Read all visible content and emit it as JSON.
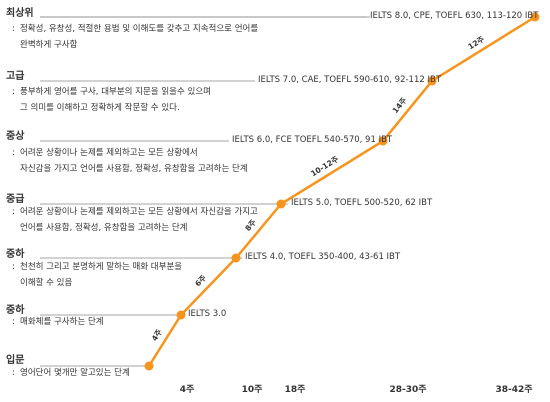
{
  "levels": [
    {
      "name": "최상위",
      "desc": [
        "정확성, 유창성, 적절한 용법 및 이해도를 갖추고 지속적으로 언어를",
        "완벽하게 구사함"
      ],
      "score": "IELTS 8.0, CPE, TOEFL 630, 113-120 IBT"
    },
    {
      "name": "고급",
      "desc": [
        "풍부하게 영어를 구사, 대부분의 지문을 읽을수 있으며",
        "그 의미를 이해하고 정확하게 작문할 수 있다."
      ],
      "score": "IELTS 7.0, CAE, TOEFL 590-610, 92-112 IBT"
    },
    {
      "name": "중상",
      "desc": [
        "어려운 상황이나 논제를 제외하고는 모든 상황에서",
        "자신감을 가지고 언어를 사용함, 정확성, 유창함을 고려하는 단계"
      ],
      "score": "IELTS 6.0, FCE TOEFL 540-570, 91 IBT"
    },
    {
      "name": "중급",
      "desc": [
        "어려운 상황이나 논제를 제외하고는 모든 상황에서 자신감을 가지고",
        "언어를 사용함, 정확성, 유창함을 고려하는 단계"
      ],
      "score": "IELTS 5.0, TOEFL 500-520, 62 IBT"
    },
    {
      "name": "중하",
      "desc": [
        "천천히 그리고 분명하게 말하는 매화 대부분을",
        "이해할 수 있음"
      ],
      "score": "IELTS 4.0, TOEFL 350-400, 43-61 IBT"
    },
    {
      "name": "중하",
      "desc": [
        "매화체를 구사하는 단계"
      ],
      "score": "IELTS 3.0"
    },
    {
      "name": "입문",
      "desc": [
        "영어단어 몇개만 알고있는 단계"
      ],
      "score": ""
    }
  ],
  "weeks": [
    "4주",
    "10주",
    "18주",
    "28-30주",
    "38-42주"
  ],
  "segment_labels": [
    "4주",
    "6주",
    "8주",
    "10-12주",
    "14주",
    "12주"
  ],
  "colors": {
    "line": "#f7941d",
    "dot": "#f7941d",
    "rule": "#888888"
  }
}
